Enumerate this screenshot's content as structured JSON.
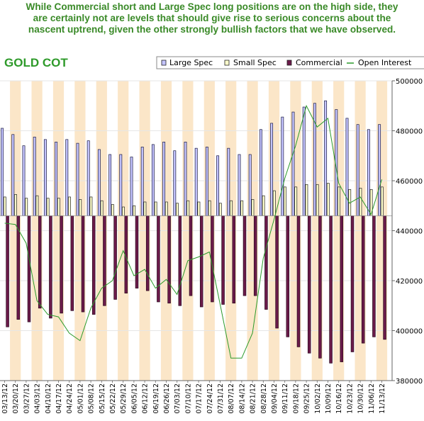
{
  "caption": {
    "lines": [
      "While Commercial short and Large Spec long positions are on the high side, they",
      "are certainly not are levels that should give rise to serious concerns about the",
      "nascent uptrend, given the other strongly bullish factors that we have observed."
    ]
  },
  "colors": {
    "title_green": "#2e9a2a",
    "caption_green": "#3a8a28",
    "large_spec": "#c4c4ff",
    "small_spec": "#ffffcc",
    "commercial": "#6b1a4a",
    "open_interest": "#2a9a2a",
    "band_stripe": "#fbe6c8"
  },
  "chart_data": {
    "type": "bar",
    "title": "GOLD  COT",
    "legend_position": "top",
    "right_axis": {
      "ticks": [
        "500000",
        "480000",
        "460000",
        "440000",
        "420000",
        "400000",
        "380000"
      ],
      "range": [
        380000,
        500000
      ]
    },
    "x": [
      "03/13/12",
      "03/20/12",
      "03/27/12",
      "04/03/12",
      "04/10/12",
      "04/17/12",
      "04/24/12",
      "05/01/12",
      "05/08/12",
      "05/15/12",
      "05/22/12",
      "05/29/12",
      "06/05/12",
      "06/12/12",
      "06/19/12",
      "06/26/12",
      "07/03/12",
      "07/10/12",
      "07/17/12",
      "07/24/12",
      "07/31/12",
      "08/07/12",
      "08/14/12",
      "08/21/12",
      "08/28/12",
      "09/04/12",
      "09/11/12",
      "09/18/12",
      "09/25/12",
      "10/02/12",
      "10/09/12",
      "10/16/12",
      "10/23/12",
      "10/30/12",
      "11/06/12",
      "11/13/12"
    ],
    "x_tick_labels": [
      "03/13/12",
      "03/20/12",
      "03/27/12",
      "04/03/12",
      "04/10/12",
      "04/17/12",
      "04/24/12",
      "05/01/12",
      "05/08/12",
      "05/15/12",
      "05/22/12",
      "05/29/12",
      "06/05/12",
      "06/12/12",
      "06/19/12",
      "06/26/12",
      "07/03/12",
      "07/10/12",
      "07/17/12",
      "07/24/12",
      "07/31/12",
      "08/07/12",
      "08/14/12",
      "08/21/12",
      "08/28/12",
      "09/04/12",
      "09/11/12",
      "09/18/12",
      "09/25/12",
      "10/02/12",
      "10/09/12",
      "10/16/12",
      "10/23/12",
      "10/30/12",
      "11/06/12",
      "11/13/12"
    ],
    "series": [
      {
        "name": "Large Spec",
        "values": [
          481000,
          478500,
          474000,
          477500,
          476500,
          475500,
          476500,
          475000,
          476000,
          472500,
          470500,
          470500,
          469500,
          473500,
          474500,
          475500,
          472000,
          475500,
          473000,
          473500,
          470000,
          473000,
          470500,
          470500,
          480500,
          483000,
          485500,
          487500,
          489500,
          491000,
          492000,
          488500,
          485000,
          482500,
          480500,
          482500
        ]
      },
      {
        "name": "Small Spec",
        "values": [
          453500,
          454500,
          453000,
          454000,
          453000,
          453000,
          453500,
          452500,
          453500,
          452000,
          450500,
          449500,
          450000,
          451500,
          451500,
          451500,
          451000,
          452000,
          451500,
          452000,
          451000,
          452000,
          452000,
          452500,
          454000,
          456000,
          457500,
          457500,
          458500,
          458500,
          459000,
          457500,
          456500,
          457000,
          456500,
          457500
        ]
      },
      {
        "name": "Commercial",
        "values": [
          401500,
          404500,
          403500,
          409000,
          405000,
          407000,
          408000,
          407500,
          406500,
          410000,
          412500,
          415000,
          417000,
          416000,
          411500,
          411000,
          410000,
          414000,
          409500,
          411500,
          410500,
          411000,
          414000,
          414000,
          408500,
          401000,
          397500,
          393500,
          391000,
          389000,
          387000,
          387500,
          391500,
          395000,
          397500,
          396500
        ]
      },
      {
        "name": "Open Interest",
        "values": [
          443000,
          442500,
          435000,
          412000,
          406500,
          405500,
          399000,
          396000,
          409000,
          417000,
          420000,
          432000,
          422000,
          424500,
          417000,
          420500,
          414500,
          428000,
          429500,
          431500,
          410500,
          389000,
          389000,
          399000,
          429000,
          444500,
          461000,
          474000,
          490000,
          481500,
          485000,
          459000,
          451000,
          453500,
          446500,
          460500
        ]
      }
    ],
    "legend": [
      "Large Spec",
      "Small Spec",
      "Commercial",
      "Open Interest"
    ],
    "grid": true
  }
}
